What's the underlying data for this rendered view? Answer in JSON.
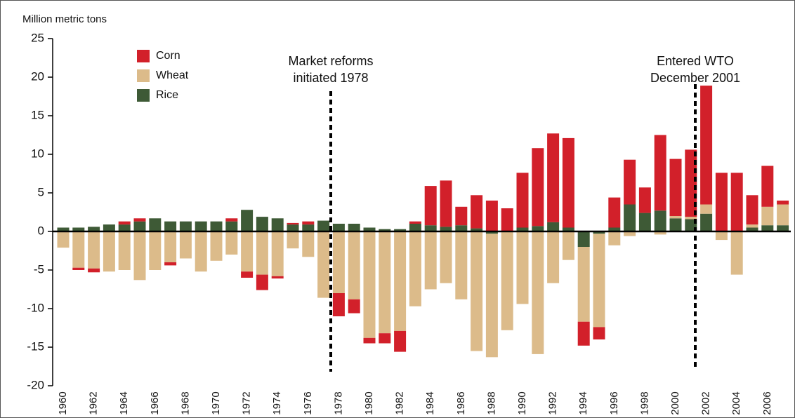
{
  "chart_data": {
    "type": "bar",
    "stacked": true,
    "y_label": "Million metric tons",
    "categories": [
      "1960",
      null,
      "1962",
      null,
      "1964",
      null,
      "1966",
      null,
      "1968",
      null,
      "1970",
      null,
      "1972",
      null,
      "1974",
      null,
      "1976",
      null,
      "1978",
      null,
      "1980",
      null,
      "1982",
      null,
      "1984",
      null,
      "1986",
      null,
      "1988",
      null,
      "1990",
      null,
      "1992",
      null,
      "1994",
      null,
      "1996",
      null,
      "1998",
      null,
      "2000",
      null,
      "2002",
      null,
      "2004",
      null,
      "2006",
      null
    ],
    "series": [
      {
        "name": "Rice",
        "color": "#3e5a36",
        "values": [
          0.5,
          0.5,
          0.6,
          0.9,
          0.9,
          1.3,
          1.7,
          1.3,
          1.3,
          1.3,
          1.3,
          1.3,
          2.8,
          1.9,
          1.7,
          0.9,
          0.9,
          1.4,
          1.0,
          1.0,
          0.5,
          0.3,
          0.3,
          1.0,
          0.8,
          0.6,
          0.8,
          0.4,
          -0.3,
          0,
          0.5,
          0.7,
          1.2,
          0.5,
          -2.0,
          -0.3,
          0.5,
          3.5,
          2.4,
          2.7,
          1.7,
          1.6,
          2.3,
          0,
          0,
          0.5,
          0.8,
          0.8
        ]
      },
      {
        "name": "Wheat",
        "color": "#dcbb8a",
        "values": [
          -2.1,
          -4.7,
          -4.8,
          -5.2,
          -5.0,
          -6.3,
          -5.0,
          -4.0,
          -3.5,
          -5.2,
          -3.8,
          -3.0,
          -5.2,
          -5.6,
          -5.8,
          -2.2,
          -3.3,
          -8.6,
          -8.0,
          -8.8,
          -13.8,
          -13.2,
          -12.9,
          -9.7,
          -7.5,
          -6.7,
          -8.8,
          -15.5,
          -16.0,
          -12.8,
          -9.4,
          -15.9,
          -6.7,
          -3.7,
          -9.7,
          -12.1,
          -1.8,
          -0.6,
          0,
          -0.4,
          0.3,
          0.3,
          1.2,
          -1.1,
          -5.6,
          0.4,
          2.4,
          2.7
        ]
      },
      {
        "name": "Corn",
        "color": "#d2202a",
        "values": [
          0,
          -0.3,
          -0.5,
          0,
          0.4,
          0.4,
          0,
          -0.4,
          0,
          0,
          0,
          0.4,
          -0.8,
          -2.0,
          -0.3,
          0.2,
          0.4,
          0,
          -3.0,
          -1.8,
          -0.7,
          -1.3,
          -2.7,
          0.3,
          5.1,
          6.0,
          2.4,
          4.3,
          4.0,
          3.0,
          7.1,
          10.1,
          11.5,
          11.6,
          -3.1,
          -1.6,
          3.9,
          5.8,
          3.3,
          9.8,
          7.4,
          8.7,
          15.4,
          7.6,
          7.6,
          3.8,
          5.3,
          0.5
        ]
      }
    ],
    "legend_order": [
      "Corn",
      "Wheat",
      "Rice"
    ],
    "ylim": [
      -20,
      25
    ],
    "yticks": [
      -20,
      -15,
      -10,
      -5,
      0,
      5,
      10,
      15,
      20,
      25
    ],
    "annotations": [
      {
        "lines": [
          "Market reforms",
          "initiated 1978"
        ]
      },
      {
        "lines": [
          "Entered WTO",
          "December 2001"
        ]
      }
    ]
  }
}
